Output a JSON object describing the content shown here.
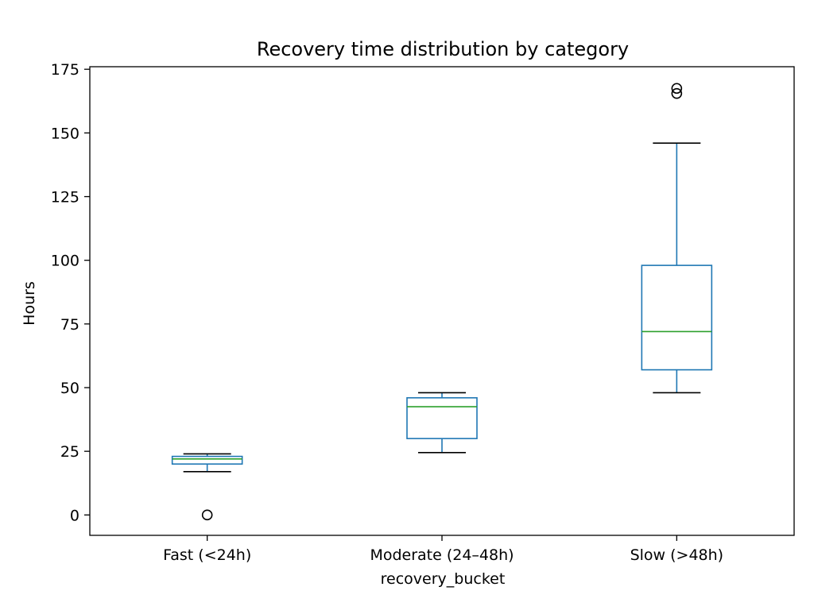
{
  "chart_data": {
    "type": "box",
    "title": "Recovery time distribution by category",
    "xlabel": "recovery_bucket",
    "ylabel": "Hours",
    "ylim": [
      -8,
      176
    ],
    "yticks": [
      0,
      25,
      50,
      75,
      100,
      125,
      150,
      175
    ],
    "yticklabels": [
      "0",
      "25",
      "50",
      "75",
      "100",
      "125",
      "150",
      "175"
    ],
    "grid": false,
    "categories": [
      "Fast (<24h)",
      "Moderate (24–48h)",
      "Slow (>48h)"
    ],
    "boxes": [
      {
        "whisker_low": 17,
        "q1": 20,
        "median": 22,
        "q3": 23,
        "whisker_high": 24,
        "outliers": [
          0
        ]
      },
      {
        "whisker_low": 24.5,
        "q1": 30,
        "median": 42.5,
        "q3": 46,
        "whisker_high": 48,
        "outliers": []
      },
      {
        "whisker_low": 48,
        "q1": 57,
        "median": 72,
        "q3": 98,
        "whisker_high": 146,
        "outliers": [
          165.5,
          167.5
        ]
      }
    ],
    "colors": {
      "box": "#1f77b4",
      "median": "#2ca02c",
      "cap": "#000000",
      "flier": "#000000",
      "axes": "#000000"
    }
  }
}
